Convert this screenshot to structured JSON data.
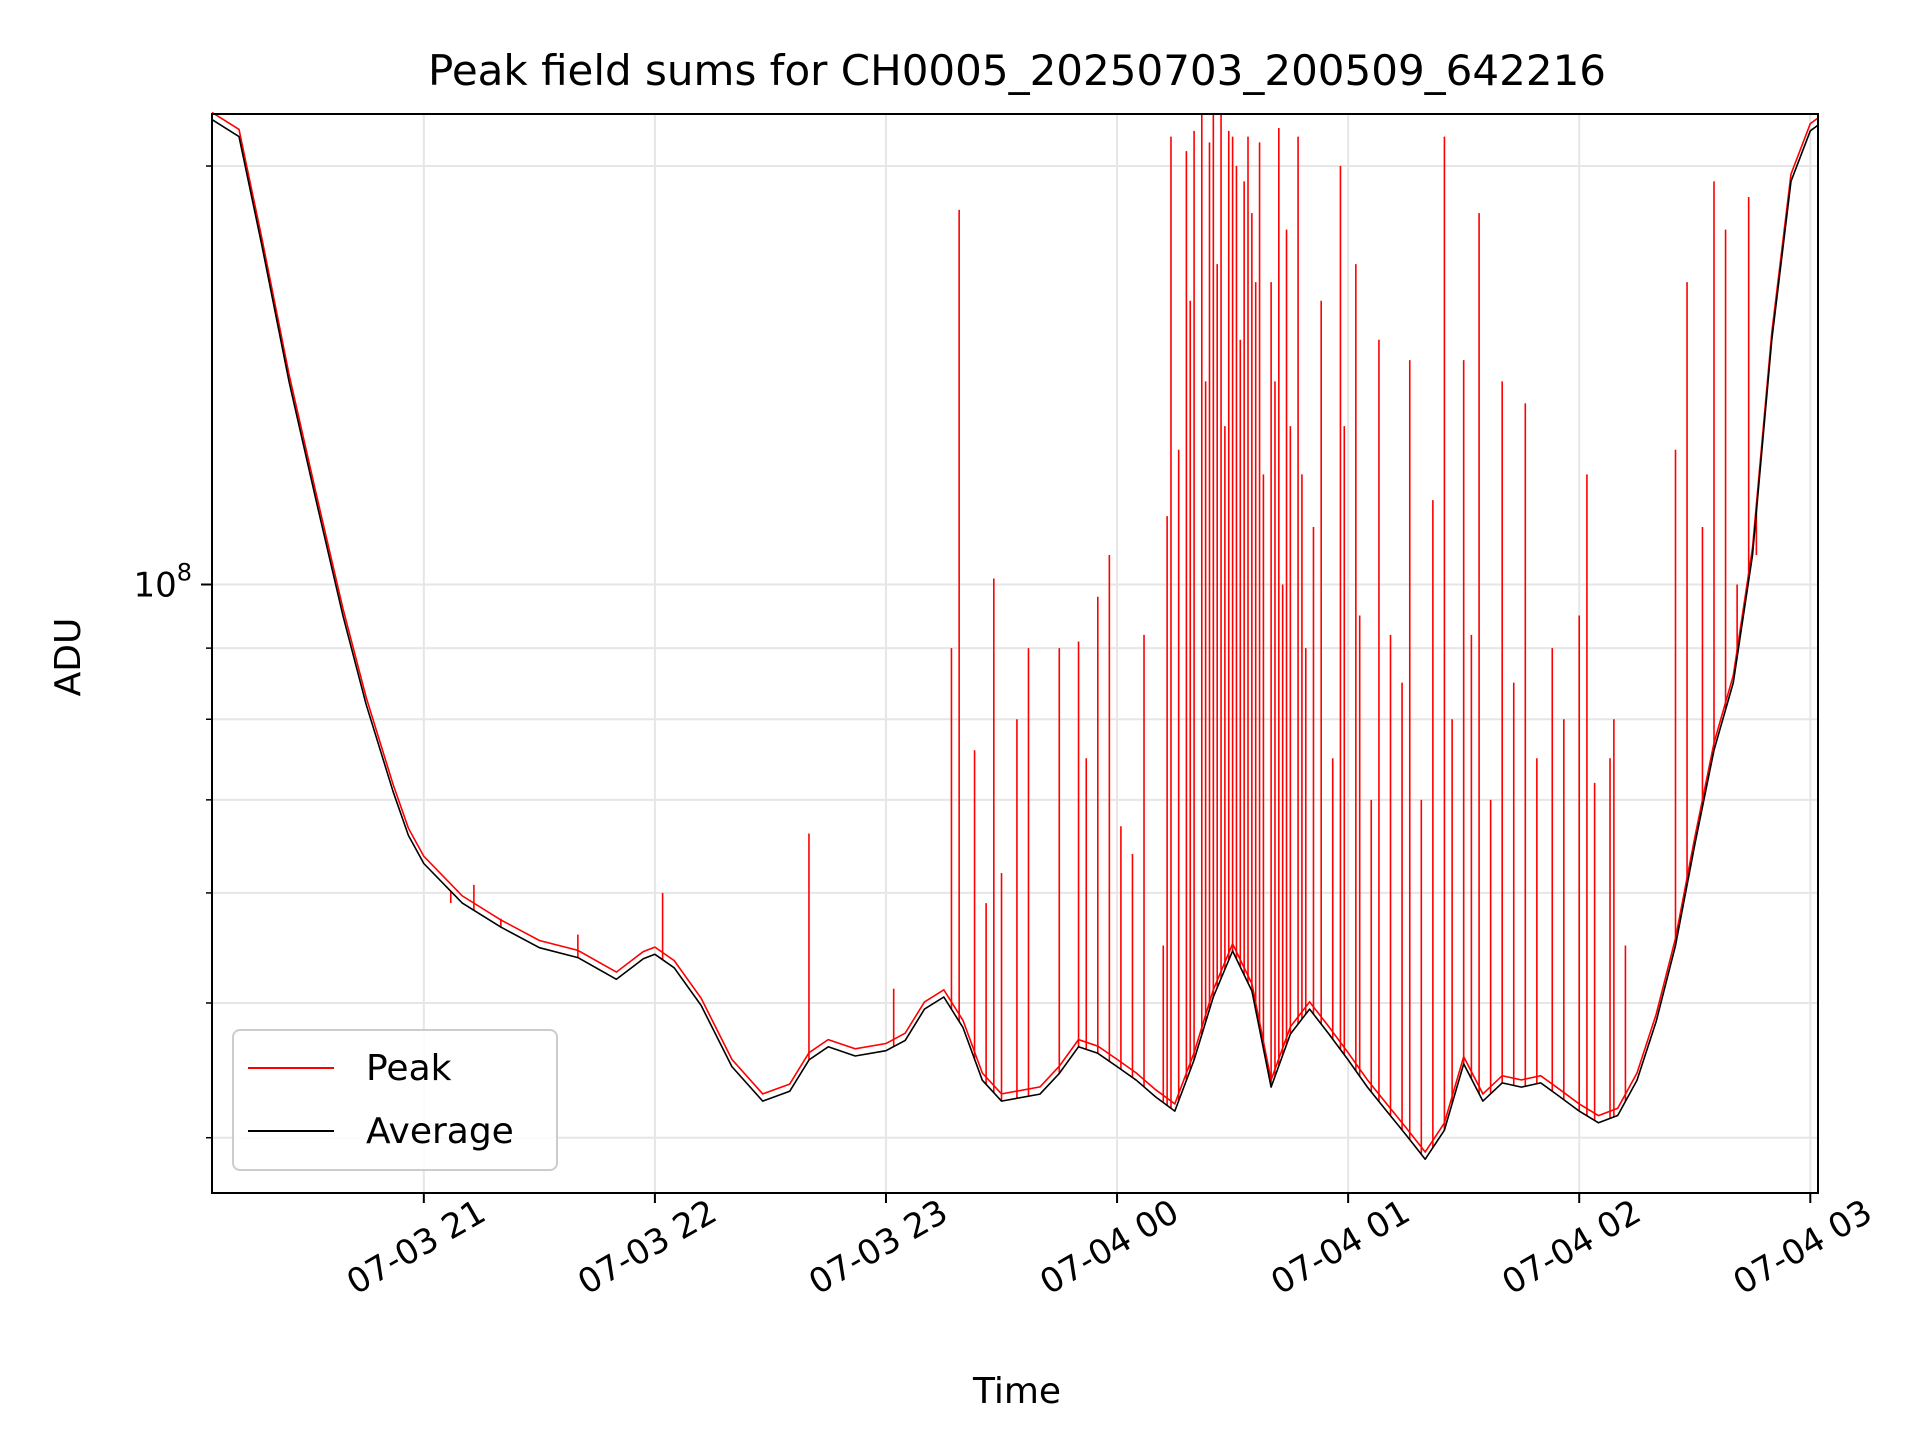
{
  "chart_data": {
    "type": "line",
    "title": "Peak field sums for CH0005_20250703_200509_642216",
    "xlabel": "Time",
    "ylabel": "ADU",
    "yscale": "log",
    "ylim": [
      36500000,
      218000000
    ],
    "xlim": [
      "2025-07-03 20:05",
      "2025-07-04 03:02"
    ],
    "grid": true,
    "legend": {
      "position": "lower-left"
    },
    "x_ticks": [
      {
        "value": "2025-07-03 21:00",
        "label": "07-03 21"
      },
      {
        "value": "2025-07-03 22:00",
        "label": "07-03 22"
      },
      {
        "value": "2025-07-03 23:00",
        "label": "07-03 23"
      },
      {
        "value": "2025-07-04 00:00",
        "label": "07-04 00"
      },
      {
        "value": "2025-07-04 01:00",
        "label": "07-04 01"
      },
      {
        "value": "2025-07-04 02:00",
        "label": "07-04 02"
      },
      {
        "value": "2025-07-04 03:00",
        "label": "07-04 03"
      }
    ],
    "y_ticks": [
      {
        "value": 100000000,
        "base": "10",
        "exp": "8"
      }
    ],
    "y_minor_ticks": [
      40000000,
      50000000,
      60000000,
      70000000,
      80000000,
      90000000,
      200000000
    ],
    "series": [
      {
        "name": "Average",
        "color": "#000000",
        "points": [
          [
            "2025-07-03 20:05",
            216000000
          ],
          [
            "2025-07-03 20:12",
            210000000
          ],
          [
            "2025-07-03 20:18",
            175000000
          ],
          [
            "2025-07-03 20:25",
            140000000
          ],
          [
            "2025-07-03 20:32",
            115000000
          ],
          [
            "2025-07-03 20:39",
            95000000
          ],
          [
            "2025-07-03 20:45",
            82000000
          ],
          [
            "2025-07-03 20:52",
            71000000
          ],
          [
            "2025-07-03 20:56",
            66000000
          ],
          [
            "2025-07-03 21:00",
            63000000
          ],
          [
            "2025-07-03 21:10",
            59000000
          ],
          [
            "2025-07-03 21:20",
            56700000
          ],
          [
            "2025-07-03 21:30",
            54800000
          ],
          [
            "2025-07-03 21:40",
            53900000
          ],
          [
            "2025-07-03 21:50",
            52000000
          ],
          [
            "2025-07-03 21:57",
            53800000
          ],
          [
            "2025-07-03 22:00",
            54200000
          ],
          [
            "2025-07-03 22:05",
            53000000
          ],
          [
            "2025-07-03 22:12",
            49800000
          ],
          [
            "2025-07-03 22:20",
            45000000
          ],
          [
            "2025-07-03 22:28",
            42500000
          ],
          [
            "2025-07-03 22:35",
            43200000
          ],
          [
            "2025-07-03 22:40",
            45500000
          ],
          [
            "2025-07-03 22:45",
            46500000
          ],
          [
            "2025-07-03 22:52",
            45800000
          ],
          [
            "2025-07-03 23:00",
            46200000
          ],
          [
            "2025-07-03 23:05",
            47000000
          ],
          [
            "2025-07-03 23:10",
            49500000
          ],
          [
            "2025-07-03 23:15",
            50500000
          ],
          [
            "2025-07-03 23:20",
            48000000
          ],
          [
            "2025-07-03 23:25",
            44000000
          ],
          [
            "2025-07-03 23:30",
            42500000
          ],
          [
            "2025-07-03 23:40",
            43000000
          ],
          [
            "2025-07-03 23:45",
            44500000
          ],
          [
            "2025-07-03 23:50",
            46500000
          ],
          [
            "2025-07-03 23:55",
            46000000
          ],
          [
            "2025-07-04 00:00",
            45000000
          ],
          [
            "2025-07-04 00:05",
            44000000
          ],
          [
            "2025-07-04 00:10",
            42800000
          ],
          [
            "2025-07-04 00:15",
            41800000
          ],
          [
            "2025-07-04 00:20",
            45500000
          ],
          [
            "2025-07-04 00:25",
            50500000
          ],
          [
            "2025-07-04 00:30",
            54500000
          ],
          [
            "2025-07-04 00:35",
            51000000
          ],
          [
            "2025-07-04 00:40",
            43500000
          ],
          [
            "2025-07-04 00:45",
            47500000
          ],
          [
            "2025-07-04 00:50",
            49500000
          ],
          [
            "2025-07-04 00:55",
            47500000
          ],
          [
            "2025-07-04 01:00",
            45500000
          ],
          [
            "2025-07-04 01:05",
            43500000
          ],
          [
            "2025-07-04 01:10",
            41800000
          ],
          [
            "2025-07-04 01:15",
            40200000
          ],
          [
            "2025-07-04 01:20",
            38600000
          ],
          [
            "2025-07-04 01:25",
            40500000
          ],
          [
            "2025-07-04 01:30",
            45200000
          ],
          [
            "2025-07-04 01:35",
            42500000
          ],
          [
            "2025-07-04 01:40",
            43800000
          ],
          [
            "2025-07-04 01:45",
            43500000
          ],
          [
            "2025-07-04 01:50",
            43800000
          ],
          [
            "2025-07-04 01:55",
            42800000
          ],
          [
            "2025-07-04 02:00",
            41800000
          ],
          [
            "2025-07-04 02:05",
            41000000
          ],
          [
            "2025-07-04 02:10",
            41500000
          ],
          [
            "2025-07-04 02:15",
            44000000
          ],
          [
            "2025-07-04 02:20",
            48500000
          ],
          [
            "2025-07-04 02:25",
            55000000
          ],
          [
            "2025-07-04 02:30",
            65000000
          ],
          [
            "2025-07-04 02:35",
            76000000
          ],
          [
            "2025-07-04 02:40",
            85000000
          ],
          [
            "2025-07-04 02:45",
            105000000
          ],
          [
            "2025-07-04 02:50",
            150000000
          ],
          [
            "2025-07-04 02:55",
            195000000
          ],
          [
            "2025-07-04 03:00",
            212000000
          ],
          [
            "2025-07-04 03:02",
            214000000
          ]
        ]
      },
      {
        "name": "Peak",
        "color": "#ff0000",
        "spikes": [
          [
            "2025-07-03 21:07",
            59000000
          ],
          [
            "2025-07-03 21:13",
            60800000
          ],
          [
            "2025-07-03 21:20",
            57500000
          ],
          [
            "2025-07-03 21:40",
            56000000
          ],
          [
            "2025-07-03 22:02",
            60000000
          ],
          [
            "2025-07-03 22:40",
            66200000
          ],
          [
            "2025-07-03 23:02",
            51200000
          ],
          [
            "2025-07-03 23:17",
            90000000
          ],
          [
            "2025-07-03 23:19",
            186000000
          ],
          [
            "2025-07-03 23:23",
            76000000
          ],
          [
            "2025-07-03 23:26",
            59000000
          ],
          [
            "2025-07-03 23:28",
            101000000
          ],
          [
            "2025-07-03 23:30",
            62000000
          ],
          [
            "2025-07-03 23:34",
            80000000
          ],
          [
            "2025-07-03 23:37",
            90000000
          ],
          [
            "2025-07-03 23:45",
            90000000
          ],
          [
            "2025-07-03 23:50",
            91000000
          ],
          [
            "2025-07-03 23:52",
            75000000
          ],
          [
            "2025-07-03 23:55",
            98000000
          ],
          [
            "2025-07-03 23:58",
            105000000
          ],
          [
            "2025-07-04 00:01",
            67000000
          ],
          [
            "2025-07-04 00:04",
            64000000
          ],
          [
            "2025-07-04 00:07",
            92000000
          ],
          [
            "2025-07-04 00:12",
            55000000
          ],
          [
            "2025-07-04 00:13",
            112000000
          ],
          [
            "2025-07-04 00:14",
            210000000
          ],
          [
            "2025-07-04 00:16",
            125000000
          ],
          [
            "2025-07-04 00:18",
            205000000
          ],
          [
            "2025-07-04 00:19",
            160000000
          ],
          [
            "2025-07-04 00:20",
            212000000
          ],
          [
            "2025-07-04 00:22",
            218000000
          ],
          [
            "2025-07-04 00:23",
            140000000
          ],
          [
            "2025-07-04 00:24",
            208000000
          ],
          [
            "2025-07-04 00:25",
            218000000
          ],
          [
            "2025-07-04 00:26",
            170000000
          ],
          [
            "2025-07-04 00:27",
            218000000
          ],
          [
            "2025-07-04 00:28",
            130000000
          ],
          [
            "2025-07-04 00:29",
            212000000
          ],
          [
            "2025-07-04 00:30",
            210000000
          ],
          [
            "2025-07-04 00:31",
            200000000
          ],
          [
            "2025-07-04 00:32",
            150000000
          ],
          [
            "2025-07-04 00:33",
            195000000
          ],
          [
            "2025-07-04 00:34",
            210000000
          ],
          [
            "2025-07-04 00:35",
            185000000
          ],
          [
            "2025-07-04 00:36",
            165000000
          ],
          [
            "2025-07-04 00:37",
            208000000
          ],
          [
            "2025-07-04 00:38",
            120000000
          ],
          [
            "2025-07-04 00:40",
            165000000
          ],
          [
            "2025-07-04 00:41",
            140000000
          ],
          [
            "2025-07-04 00:42",
            213000000
          ],
          [
            "2025-07-04 00:43",
            100000000
          ],
          [
            "2025-07-04 00:44",
            180000000
          ],
          [
            "2025-07-04 00:45",
            130000000
          ],
          [
            "2025-07-04 00:47",
            210000000
          ],
          [
            "2025-07-04 00:48",
            120000000
          ],
          [
            "2025-07-04 00:49",
            90000000
          ],
          [
            "2025-07-04 00:51",
            110000000
          ],
          [
            "2025-07-04 00:53",
            160000000
          ],
          [
            "2025-07-04 00:56",
            75000000
          ],
          [
            "2025-07-04 00:58",
            200000000
          ],
          [
            "2025-07-04 00:59",
            130000000
          ],
          [
            "2025-07-04 01:02",
            170000000
          ],
          [
            "2025-07-04 01:03",
            95000000
          ],
          [
            "2025-07-04 01:06",
            70000000
          ],
          [
            "2025-07-04 01:08",
            150000000
          ],
          [
            "2025-07-04 01:11",
            92000000
          ],
          [
            "2025-07-04 01:14",
            85000000
          ],
          [
            "2025-07-04 01:16",
            145000000
          ],
          [
            "2025-07-04 01:19",
            70000000
          ],
          [
            "2025-07-04 01:22",
            115000000
          ],
          [
            "2025-07-04 01:25",
            210000000
          ],
          [
            "2025-07-04 01:27",
            80000000
          ],
          [
            "2025-07-04 01:30",
            145000000
          ],
          [
            "2025-07-04 01:32",
            92000000
          ],
          [
            "2025-07-04 01:34",
            185000000
          ],
          [
            "2025-07-04 01:37",
            70000000
          ],
          [
            "2025-07-04 01:40",
            140000000
          ],
          [
            "2025-07-04 01:43",
            85000000
          ],
          [
            "2025-07-04 01:46",
            135000000
          ],
          [
            "2025-07-04 01:49",
            75000000
          ],
          [
            "2025-07-04 01:53",
            90000000
          ],
          [
            "2025-07-04 01:56",
            80000000
          ],
          [
            "2025-07-04 02:00",
            95000000
          ],
          [
            "2025-07-04 02:02",
            120000000
          ],
          [
            "2025-07-04 02:04",
            72000000
          ],
          [
            "2025-07-04 02:08",
            75000000
          ],
          [
            "2025-07-04 02:09",
            80000000
          ],
          [
            "2025-07-04 02:12",
            55000000
          ],
          [
            "2025-07-04 02:25",
            125000000
          ],
          [
            "2025-07-04 02:28",
            165000000
          ],
          [
            "2025-07-04 02:32",
            110000000
          ],
          [
            "2025-07-04 02:35",
            195000000
          ],
          [
            "2025-07-04 02:38",
            180000000
          ],
          [
            "2025-07-04 02:41",
            100000000
          ],
          [
            "2025-07-04 02:44",
            190000000
          ],
          [
            "2025-07-04 02:46",
            105000000
          ]
        ]
      }
    ]
  }
}
